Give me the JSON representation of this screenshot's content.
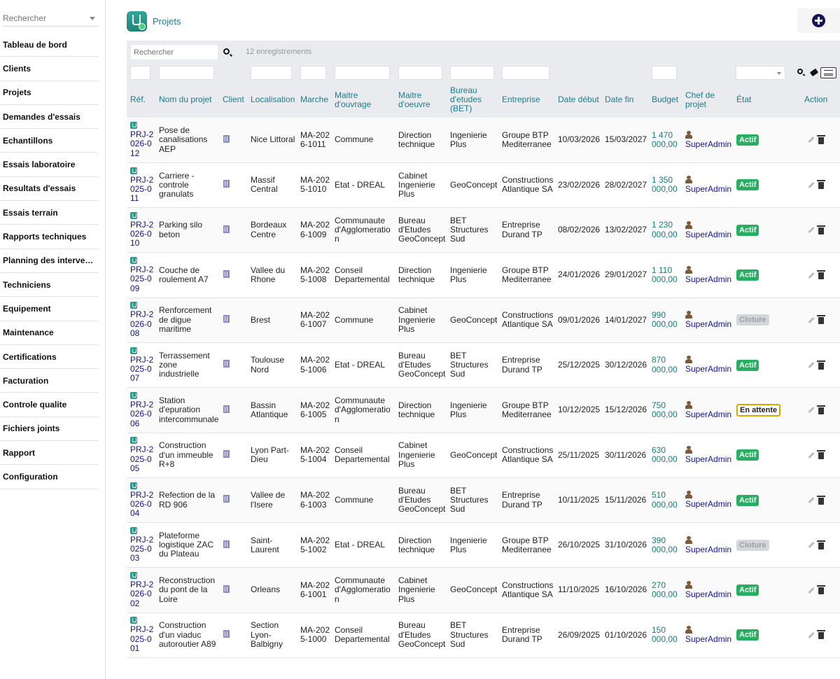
{
  "sidebar": {
    "search_placeholder": "Rechercher",
    "items": [
      "Tableau de bord",
      "Clients",
      "Projets",
      "Demandes d'essais",
      "Echantillons",
      "Essais laboratoire",
      "Resultats d'essais",
      "Essais terrain",
      "Rapports techniques",
      "Planning des interventi…",
      "Techniciens",
      "Equipement",
      "Maintenance",
      "Certifications",
      "Facturation",
      "Controle qualite",
      "Fichiers joints",
      "Rapport",
      "Configuration"
    ]
  },
  "header": {
    "title": "Projets",
    "add_icon": "plus-circle-icon"
  },
  "toolbar": {
    "search_placeholder": "Rechercher",
    "record_count": "12 enregistrements"
  },
  "table": {
    "columns": [
      "Réf.",
      "Nom du projet",
      "Client",
      "Localisation",
      "Marche",
      "Maitre d'ouvrage",
      "Maitre d'oeuvre",
      "Bureau d'etudes (BET)",
      "Entreprise",
      "Date début",
      "Date fin",
      "Budget",
      "Chef de projet",
      "État",
      "Action"
    ],
    "rows": [
      {
        "ref": "PRJ-2026-012",
        "nom": "Pose de canalisations AEP",
        "localisation": "Nice Littoral",
        "marche": "MA-2026-1011",
        "moa": "Commune",
        "moe": "Direction technique",
        "bet": "Ingenierie Plus",
        "entreprise": "Groupe BTP Mediterranee",
        "debut": "10/03/2026",
        "fin": "15/03/2027",
        "budget": "1 470 000,00",
        "chef": "SuperAdmin",
        "etat": "Actif",
        "etat_kind": "actif"
      },
      {
        "ref": "PRJ-2025-011",
        "nom": "Carriere - controle granulats",
        "localisation": "Massif Central",
        "marche": "MA-2025-1010",
        "moa": "Etat - DREAL",
        "moe": "Cabinet Ingenierie Plus",
        "bet": "GeoConcept",
        "entreprise": "Constructions Atlantique SA",
        "debut": "23/02/2026",
        "fin": "28/02/2027",
        "budget": "1 350 000,00",
        "chef": "SuperAdmin",
        "etat": "Actif",
        "etat_kind": "actif"
      },
      {
        "ref": "PRJ-2026-010",
        "nom": "Parking silo beton",
        "localisation": "Bordeaux Centre",
        "marche": "MA-2026-1009",
        "moa": "Communaute d'Agglomeration",
        "moe": "Bureau d'Etudes GeoConcept",
        "bet": "BET Structures Sud",
        "entreprise": "Entreprise Durand TP",
        "debut": "08/02/2026",
        "fin": "13/02/2027",
        "budget": "1 230 000,00",
        "chef": "SuperAdmin",
        "etat": "Actif",
        "etat_kind": "actif"
      },
      {
        "ref": "PRJ-2025-009",
        "nom": "Couche de roulement A7",
        "localisation": "Vallee du Rhone",
        "marche": "MA-2025-1008",
        "moa": "Conseil Departemental",
        "moe": "Direction technique",
        "bet": "Ingenierie Plus",
        "entreprise": "Groupe BTP Mediterranee",
        "debut": "24/01/2026",
        "fin": "29/01/2027",
        "budget": "1 110 000,00",
        "chef": "SuperAdmin",
        "etat": "Actif",
        "etat_kind": "actif"
      },
      {
        "ref": "PRJ-2026-008",
        "nom": "Renforcement de digue maritime",
        "localisation": "Brest",
        "marche": "MA-2026-1007",
        "moa": "Commune",
        "moe": "Cabinet Ingenierie Plus",
        "bet": "GeoConcept",
        "entreprise": "Constructions Atlantique SA",
        "debut": "09/01/2026",
        "fin": "14/01/2027",
        "budget": "990 000,00",
        "chef": "SuperAdmin",
        "etat": "Cloture",
        "etat_kind": "cloture"
      },
      {
        "ref": "PRJ-2025-007",
        "nom": "Terrassement zone industrielle",
        "localisation": "Toulouse Nord",
        "marche": "MA-2025-1006",
        "moa": "Etat - DREAL",
        "moe": "Bureau d'Etudes GeoConcept",
        "bet": "BET Structures Sud",
        "entreprise": "Entreprise Durand TP",
        "debut": "25/12/2025",
        "fin": "30/12/2026",
        "budget": "870 000,00",
        "chef": "SuperAdmin",
        "etat": "Actif",
        "etat_kind": "actif"
      },
      {
        "ref": "PRJ-2026-006",
        "nom": "Station d'epuration intercommunale",
        "localisation": "Bassin Atlantique",
        "marche": "MA-2026-1005",
        "moa": "Communaute d'Agglomeration",
        "moe": "Direction technique",
        "bet": "Ingenierie Plus",
        "entreprise": "Groupe BTP Mediterranee",
        "debut": "10/12/2025",
        "fin": "15/12/2026",
        "budget": "750 000,00",
        "chef": "SuperAdmin",
        "etat": "En attente",
        "etat_kind": "attente"
      },
      {
        "ref": "PRJ-2025-005",
        "nom": "Construction d'un immeuble R+8",
        "localisation": "Lyon Part-Dieu",
        "marche": "MA-2025-1004",
        "moa": "Conseil Departemental",
        "moe": "Cabinet Ingenierie Plus",
        "bet": "GeoConcept",
        "entreprise": "Constructions Atlantique SA",
        "debut": "25/11/2025",
        "fin": "30/11/2026",
        "budget": "630 000,00",
        "chef": "SuperAdmin",
        "etat": "Actif",
        "etat_kind": "actif"
      },
      {
        "ref": "PRJ-2026-004",
        "nom": "Refection de la RD 906",
        "localisation": "Vallee de l'Isere",
        "marche": "MA-2026-1003",
        "moa": "Commune",
        "moe": "Bureau d'Etudes GeoConcept",
        "bet": "BET Structures Sud",
        "entreprise": "Entreprise Durand TP",
        "debut": "10/11/2025",
        "fin": "15/11/2026",
        "budget": "510 000,00",
        "chef": "SuperAdmin",
        "etat": "Actif",
        "etat_kind": "actif"
      },
      {
        "ref": "PRJ-2025-003",
        "nom": "Plateforme logistique ZAC du Plateau",
        "localisation": "Saint-Laurent",
        "marche": "MA-2025-1002",
        "moa": "Etat - DREAL",
        "moe": "Direction technique",
        "bet": "Ingenierie Plus",
        "entreprise": "Groupe BTP Mediterranee",
        "debut": "26/10/2025",
        "fin": "31/10/2026",
        "budget": "390 000,00",
        "chef": "SuperAdmin",
        "etat": "Cloture",
        "etat_kind": "cloture"
      },
      {
        "ref": "PRJ-2026-002",
        "nom": "Reconstruction du pont de la Loire",
        "localisation": "Orleans",
        "marche": "MA-2026-1001",
        "moa": "Communaute d'Agglomeration",
        "moe": "Cabinet Ingenierie Plus",
        "bet": "GeoConcept",
        "entreprise": "Constructions Atlantique SA",
        "debut": "11/10/2025",
        "fin": "16/10/2026",
        "budget": "270 000,00",
        "chef": "SuperAdmin",
        "etat": "Actif",
        "etat_kind": "actif"
      },
      {
        "ref": "PRJ-2025-001",
        "nom": "Construction d'un viaduc autoroutier A89",
        "localisation": "Section Lyon-Balbigny",
        "marche": "MA-2025-1000",
        "moa": "Conseil Departemental",
        "moe": "Bureau d'Etudes GeoConcept",
        "bet": "BET Structures Sud",
        "entreprise": "Entreprise Durand TP",
        "debut": "26/09/2025",
        "fin": "01/10/2026",
        "budget": "150 000,00",
        "chef": "SuperAdmin",
        "etat": "Actif",
        "etat_kind": "actif"
      }
    ]
  }
}
